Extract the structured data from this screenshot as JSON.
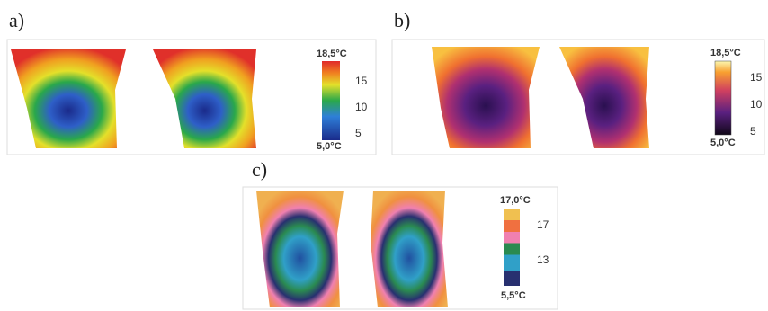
{
  "panels": [
    {
      "label": "a)",
      "scale_max": "18,5°C",
      "scale_min": "5,0°C",
      "ticks": [
        "15",
        "10",
        "5"
      ]
    },
    {
      "label": "b)",
      "scale_max": "18,5°C",
      "scale_min": "5,0°C",
      "ticks": [
        "15",
        "10",
        "5"
      ]
    },
    {
      "label": "c)",
      "scale_max": "17,0°C",
      "scale_min": "5,5°C",
      "ticks": [
        "17",
        "13"
      ]
    }
  ]
}
